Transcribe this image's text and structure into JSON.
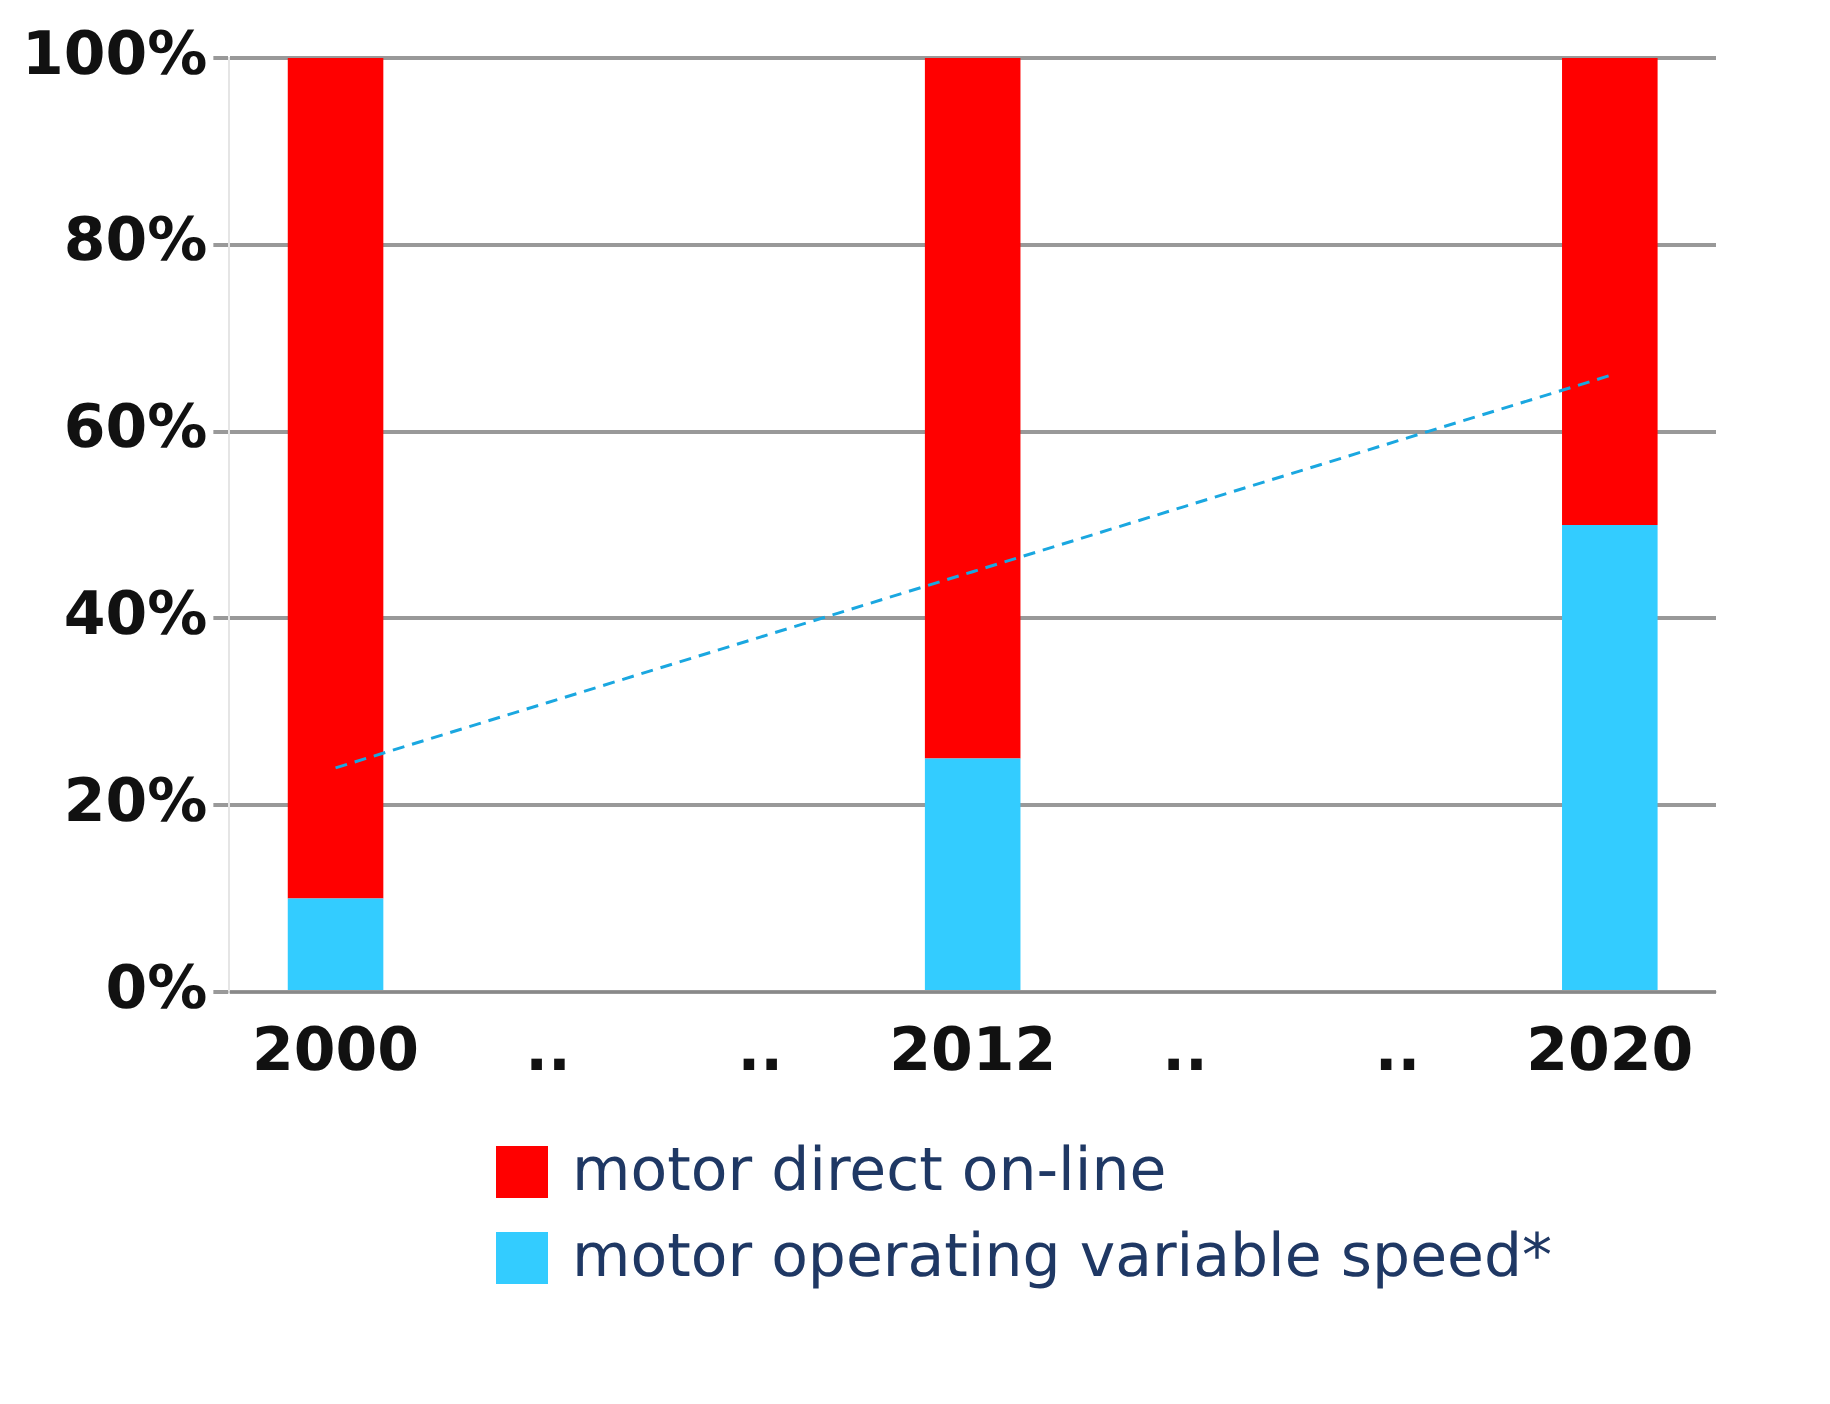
{
  "chart_data": {
    "type": "bar",
    "stacked": true,
    "categories": [
      "2000",
      "..",
      "..",
      "2012",
      "..",
      "..",
      "2020"
    ],
    "series": [
      {
        "name": "motor operating variable speed*",
        "color": "#33ccff",
        "values": [
          10,
          null,
          null,
          25,
          null,
          null,
          50
        ]
      },
      {
        "name": "motor direct on-line",
        "color": "#ff0000",
        "values": [
          90,
          null,
          null,
          75,
          null,
          null,
          50
        ]
      },
      {
        "type": "line",
        "color": "#1aa7e0",
        "line_style": "dashed",
        "marker": "none",
        "values": [
          24,
          31,
          38,
          45,
          52,
          59,
          66
        ]
      }
    ],
    "ylim": [
      0,
      100
    ],
    "yticks": [
      {
        "value": 0,
        "label": "0%"
      },
      {
        "value": 20,
        "label": "20%"
      },
      {
        "value": 40,
        "label": "40%"
      },
      {
        "value": 60,
        "label": "60%"
      },
      {
        "value": 80,
        "label": "80%"
      },
      {
        "value": 100,
        "label": "100%"
      }
    ],
    "grid": "y",
    "legend": "bottom"
  }
}
